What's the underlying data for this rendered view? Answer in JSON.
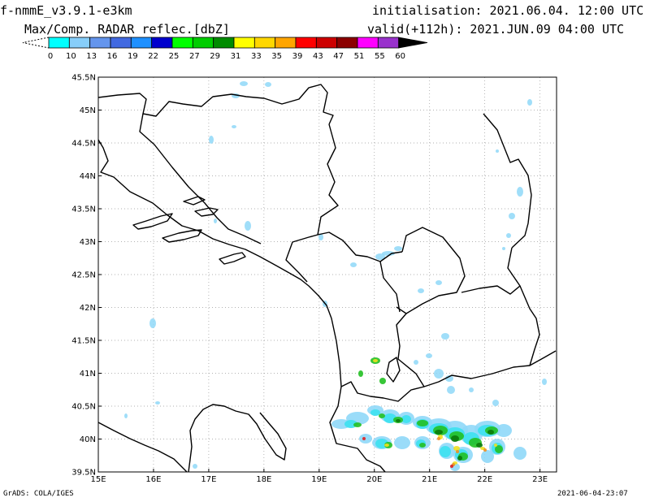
{
  "header": {
    "model": "f-nmmE_v3.9.1-e3km",
    "product": "Max/Comp. RADAR reflec.[dbZ]",
    "initialisation": "initialisation: 2021.06.04. 12:00 UTC",
    "valid": "valid(+112h): 2021.JUN.09 04:00 UTC"
  },
  "colorbar": {
    "labels": [
      "0",
      "10",
      "13",
      "16",
      "19",
      "22",
      "25",
      "27",
      "29",
      "31",
      "33",
      "35",
      "39",
      "43",
      "47",
      "51",
      "55",
      "60"
    ],
    "colors": [
      "#00ffff",
      "#87cefa",
      "#6495ed",
      "#4169e1",
      "#1e90ff",
      "#0000cd",
      "#00ff00",
      "#00cd00",
      "#008b00",
      "#ffff00",
      "#ffd700",
      "#ffa500",
      "#ff0000",
      "#cd0000",
      "#8b0000",
      "#ff00ff",
      "#9932cc",
      "#000000"
    ]
  },
  "map": {
    "lon_labels": [
      "15E",
      "16E",
      "17E",
      "18E",
      "19E",
      "20E",
      "21E",
      "22E",
      "23E"
    ],
    "lat_labels": [
      "39.5N",
      "40N",
      "40.5N",
      "41N",
      "41.5N",
      "42N",
      "42.5N",
      "43N",
      "43.5N",
      "44N",
      "44.5N",
      "45N",
      "45.5N"
    ],
    "lon_range": [
      15,
      23.3
    ],
    "lat_range": [
      39.5,
      45.5
    ],
    "colors": {
      "border": "#000000",
      "grid": "#999999",
      "light": "#8fd8f8",
      "cyan": "#40e0f0",
      "green": "#22c022",
      "dark_green": "#0a7a0a",
      "yellow": "#f0e020",
      "orange": "#f09020",
      "red": "#e02020"
    }
  },
  "footer": {
    "left": "GrADS: COLA/IGES",
    "right": "2021-06-04-23:07"
  }
}
